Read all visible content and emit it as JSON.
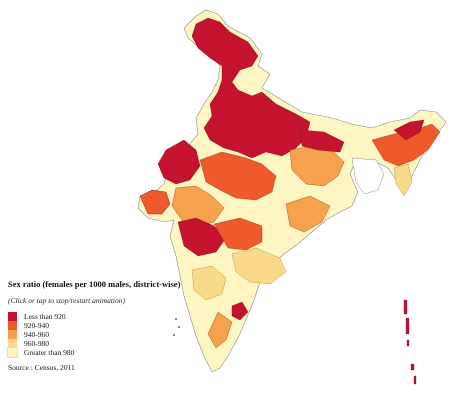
{
  "legend": {
    "title": "Sex ratio (females per 1000 males, district-wise)",
    "note": "(Click or tap to stop/restart animation)",
    "items": [
      {
        "label": "Less than 920",
        "color": "#c4122f"
      },
      {
        "label": "920-940",
        "color": "#ee5a2a"
      },
      {
        "label": "940-960",
        "color": "#f6a14b"
      },
      {
        "label": "960-980",
        "color": "#fbd98a"
      },
      {
        "label": "Greater than 980",
        "color": "#fdf6c3"
      }
    ]
  },
  "source": "Source : Census, 2011"
}
